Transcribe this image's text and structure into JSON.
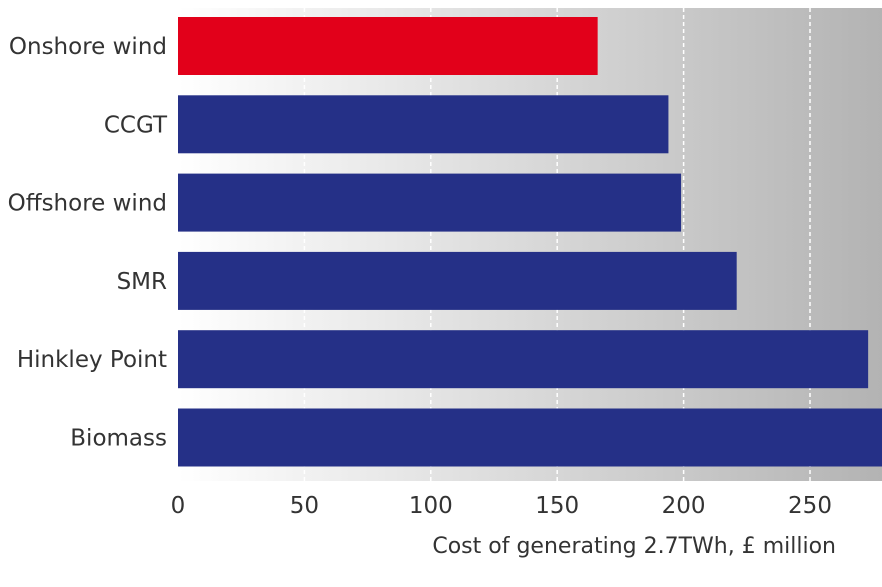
{
  "chart_data": {
    "type": "bar",
    "orientation": "horizontal",
    "categories": [
      "Onshore wind",
      "CCGT",
      "Offshore wind",
      "SMR",
      "Hinkley Point",
      "Biomass"
    ],
    "values": [
      166,
      194,
      199,
      221,
      273,
      290
    ],
    "xlabel": "Cost of generating 2.7TWh, £ million",
    "ylabel": "",
    "title": "",
    "xlim": [
      0,
      280
    ],
    "xticks": [
      0,
      50,
      100,
      150,
      200,
      250
    ],
    "grid": "vertical dashed",
    "highlight_category": "Onshore wind",
    "colors": {
      "highlight": "#e2001a",
      "bar": "#253087",
      "background_light": "#ffffff",
      "background_dark": "#b3b3b3",
      "gridline": "#ffffff"
    }
  }
}
